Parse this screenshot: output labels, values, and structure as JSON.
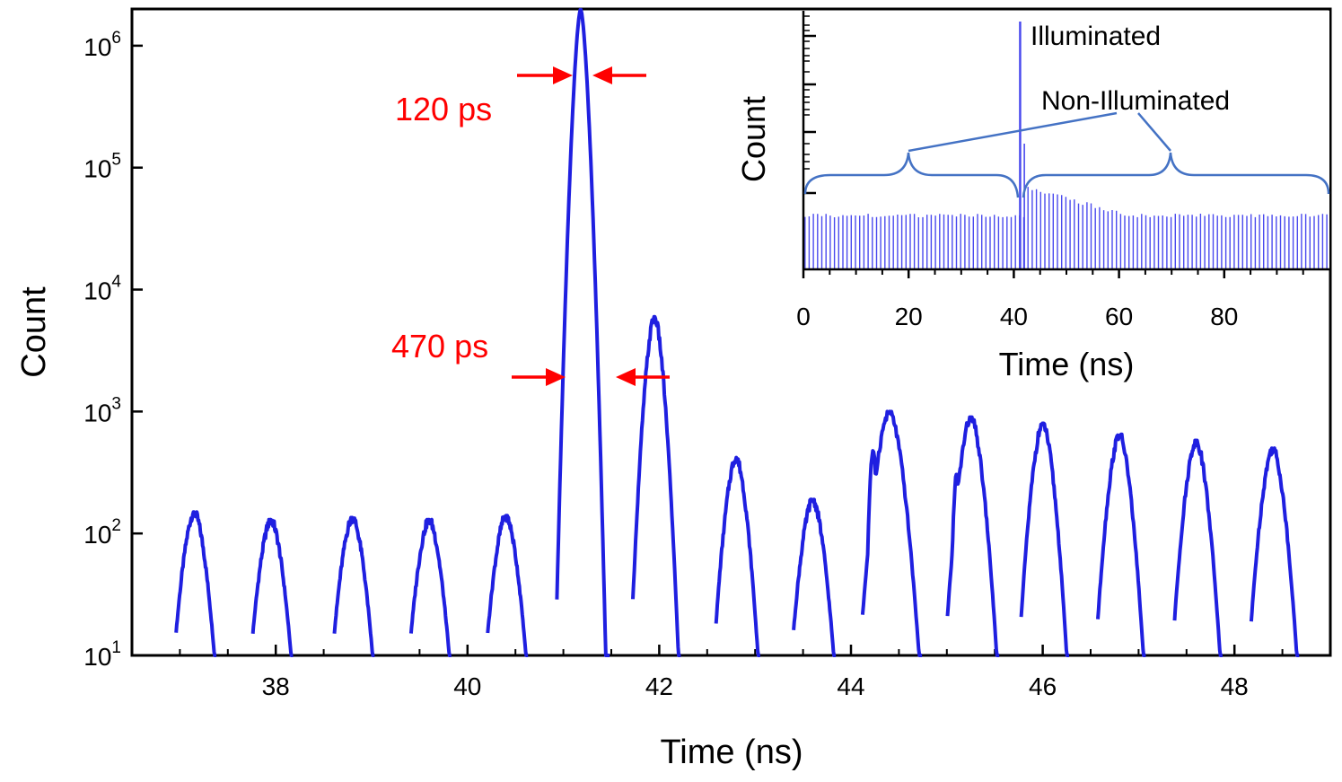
{
  "chart_data": [
    {
      "type": "line",
      "role": "main",
      "xlabel": "Time (ns)",
      "ylabel": "Count",
      "xlim": [
        36.5,
        49
      ],
      "ylim": [
        10,
        2000000
      ],
      "yscale": "log",
      "xticks": [
        38,
        40,
        42,
        44,
        46,
        48
      ],
      "yticks": [
        {
          "value": 10,
          "base": "10",
          "exp": "1"
        },
        {
          "value": 100,
          "base": "10",
          "exp": "2"
        },
        {
          "value": 1000,
          "base": "10",
          "exp": "3"
        },
        {
          "value": 10000,
          "base": "10",
          "exp": "4"
        },
        {
          "value": 100000,
          "base": "10",
          "exp": "5"
        },
        {
          "value": 1000000,
          "base": "10",
          "exp": "6"
        }
      ],
      "series_color": "#1f1fe0",
      "peaks": [
        {
          "t": 37.15,
          "peak": 150,
          "w": 0.42
        },
        {
          "t": 37.95,
          "peak": 130,
          "w": 0.42
        },
        {
          "t": 38.8,
          "peak": 135,
          "w": 0.42
        },
        {
          "t": 39.6,
          "peak": 130,
          "w": 0.42
        },
        {
          "t": 40.4,
          "peak": 140,
          "w": 0.42
        },
        {
          "t": 41.18,
          "peak": 2000000,
          "w": 0.55,
          "main": true
        },
        {
          "t": 41.95,
          "peak": 6000,
          "w": 0.5
        },
        {
          "t": 42.8,
          "peak": 420,
          "w": 0.46
        },
        {
          "t": 43.6,
          "peak": 190,
          "w": 0.44
        },
        {
          "t": 44.4,
          "peak": 1000,
          "w": 0.62,
          "shoulder": 460
        },
        {
          "t": 45.25,
          "peak": 900,
          "w": 0.54,
          "shoulder": 300
        },
        {
          "t": 46.0,
          "peak": 800,
          "w": 0.5
        },
        {
          "t": 46.8,
          "peak": 650,
          "w": 0.5
        },
        {
          "t": 47.6,
          "peak": 580,
          "w": 0.5
        },
        {
          "t": 48.4,
          "peak": 500,
          "w": 0.5
        }
      ],
      "annotations": [
        {
          "text": "120 ps",
          "color": "#ff0000"
        },
        {
          "text": "470 ps",
          "color": "#ff0000"
        }
      ]
    },
    {
      "type": "line",
      "role": "inset",
      "xlabel": "Time (ns)",
      "ylabel": "Count",
      "xlim": [
        0,
        100
      ],
      "xticks": [
        0,
        20,
        40,
        60,
        80
      ],
      "series_color": "#4a4aee",
      "annotations": [
        {
          "text": "Illuminated"
        },
        {
          "text": "Non-Illuminated"
        }
      ],
      "illuminated_peak_ns": 41.2
    }
  ]
}
